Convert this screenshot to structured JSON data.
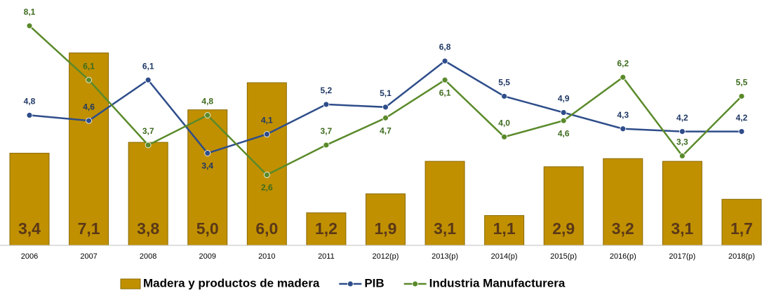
{
  "chart_data": {
    "type": "combo",
    "categories": [
      "2006",
      "2007",
      "2008",
      "2009",
      "2010",
      "2011",
      "2012(p)",
      "2013(p)",
      "2014(p)",
      "2015(p)",
      "2016(p)",
      "2017(p)",
      "2018(p)"
    ],
    "ylim": [
      0,
      9
    ],
    "legend": "bottom",
    "series": [
      {
        "name": "Madera y productos de madera",
        "type": "bar",
        "color": "#c09000",
        "values": [
          3.4,
          7.1,
          3.8,
          5.0,
          6.0,
          1.2,
          1.9,
          3.1,
          1.1,
          2.9,
          3.2,
          3.1,
          1.7
        ],
        "value_labels": [
          "3,4",
          "7,1",
          "3,8",
          "5,0",
          "6,0",
          "1,2",
          "1,9",
          "3,1",
          "1,1",
          "2,9",
          "3,2",
          "3,1",
          "1,7"
        ]
      },
      {
        "name": "PIB",
        "type": "line",
        "color": "#2e4d8a",
        "values": [
          4.8,
          4.6,
          6.1,
          3.4,
          4.1,
          5.2,
          5.1,
          6.8,
          5.5,
          4.9,
          4.3,
          4.2,
          4.2
        ],
        "value_labels": [
          "4,8",
          "4,6",
          "6,1",
          "3,4",
          "4,1",
          "5,2",
          "5,1",
          "6,8",
          "5,5",
          "4,9",
          "4,3",
          "4,2",
          "4,2"
        ]
      },
      {
        "name": "Industria Manufacturera",
        "type": "line",
        "color": "#5a8a2a",
        "values": [
          8.1,
          6.1,
          3.7,
          4.8,
          2.6,
          3.7,
          4.7,
          6.1,
          4.0,
          4.6,
          6.2,
          3.3,
          5.5
        ],
        "value_labels": [
          "8,1",
          "6,1",
          "3,7",
          "4,8",
          "2,6",
          "3,7",
          "4,7",
          "6,1",
          "4,0",
          "4,6",
          "6,2",
          "3,3",
          "5,5"
        ]
      }
    ]
  }
}
